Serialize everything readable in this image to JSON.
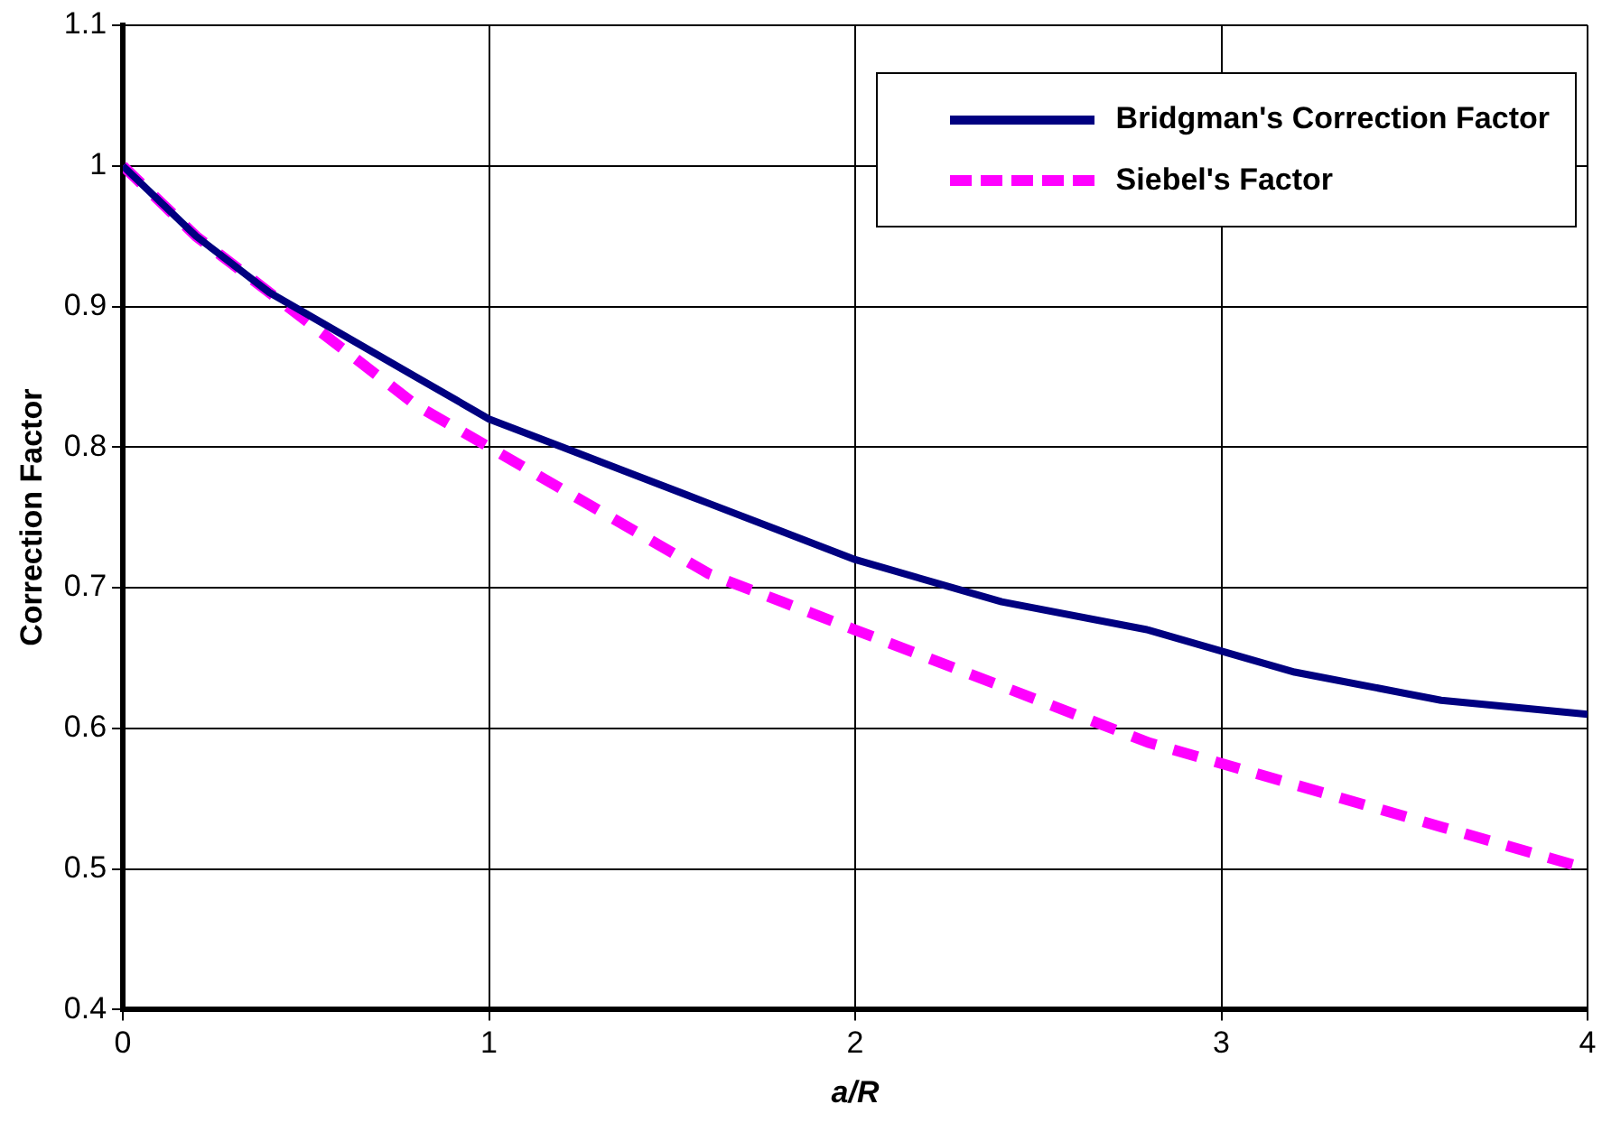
{
  "chart_data": {
    "type": "line",
    "xlabel": "a/R",
    "ylabel": "Correction Factor",
    "xlim": [
      0,
      4
    ],
    "xticks": [
      0,
      1,
      2,
      3,
      4
    ],
    "ylim": [
      0.4,
      1.1
    ],
    "yticks": [
      0.4,
      0.5,
      0.6,
      0.7,
      0.8,
      0.9,
      1,
      1.1
    ],
    "grid": true,
    "legend": "top right",
    "marker": "none",
    "series": [
      {
        "name": "Bridgman's Correction Factor",
        "color": "#000080",
        "line_style": "solid",
        "x": [
          0,
          0.2,
          0.4,
          0.6,
          0.8,
          1,
          1.2,
          1.4,
          1.6,
          1.8,
          2,
          2.4,
          2.8,
          3.2,
          3.6,
          4
        ],
        "values": [
          1,
          0.95,
          0.91,
          0.88,
          0.85,
          0.82,
          0.8,
          0.78,
          0.76,
          0.74,
          0.72,
          0.69,
          0.67,
          0.64,
          0.62,
          0.61
        ]
      },
      {
        "name": "Siebel's Factor",
        "color": "#ff00ff",
        "line_style": "dashed",
        "x": [
          0,
          0.2,
          0.4,
          0.6,
          0.8,
          1,
          1.2,
          1.4,
          1.6,
          1.8,
          2,
          2.4,
          2.8,
          3.2,
          3.6,
          4
        ],
        "values": [
          1,
          0.95,
          0.91,
          0.87,
          0.83,
          0.8,
          0.77,
          0.74,
          0.71,
          0.69,
          0.67,
          0.63,
          0.59,
          0.56,
          0.53,
          0.5
        ]
      }
    ]
  }
}
